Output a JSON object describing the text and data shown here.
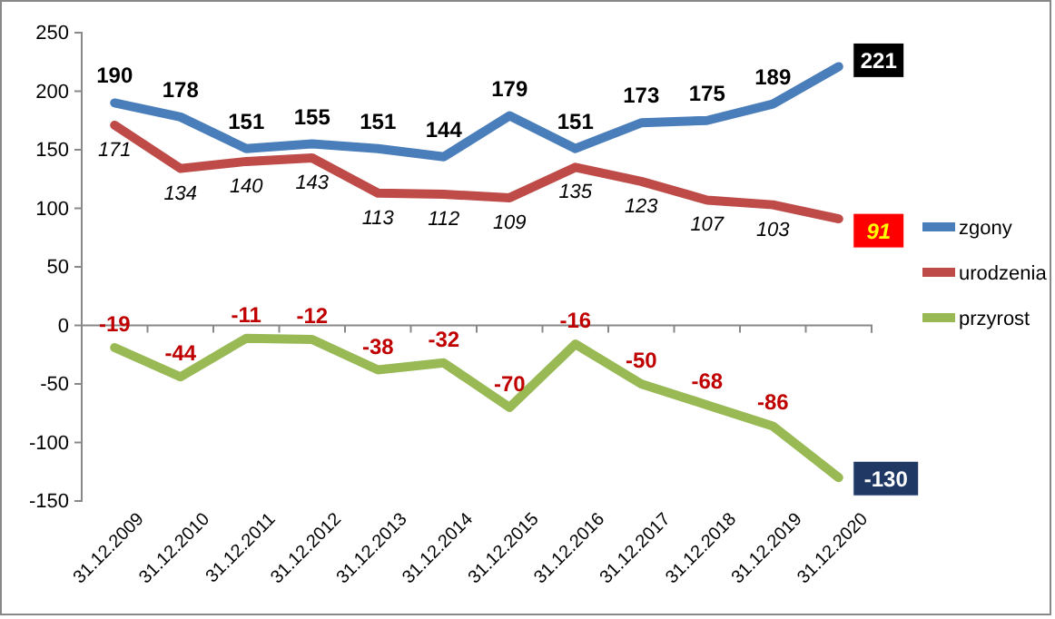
{
  "chart_data": {
    "type": "line",
    "categories": [
      "31.12.2009",
      "31.12.2010",
      "31.12.2011",
      "31.12.2012",
      "31.12.2013",
      "31.12.2014",
      "31.12.2015",
      "31.12.2016",
      "31.12.2017",
      "31.12.2018",
      "31.12.2019",
      "31.12.2020"
    ],
    "series": [
      {
        "name": "zgony",
        "color": "#4a7ebb",
        "values": [
          190,
          178,
          151,
          155,
          151,
          144,
          179,
          151,
          173,
          175,
          189,
          221
        ]
      },
      {
        "name": "urodzenia",
        "color": "#be4b48",
        "values": [
          171,
          134,
          140,
          143,
          113,
          112,
          109,
          135,
          123,
          107,
          103,
          91
        ]
      },
      {
        "name": "przyrost",
        "color": "#98b954",
        "values": [
          -19,
          -44,
          -11,
          -12,
          -38,
          -32,
          -70,
          -16,
          -50,
          -68,
          -86,
          -130
        ]
      }
    ],
    "ylim": [
      -150,
      250
    ],
    "yticks": [
      -150,
      -100,
      -50,
      0,
      50,
      100,
      150,
      200,
      250
    ],
    "grid": false,
    "legend": "right",
    "data_labels": true,
    "marker": "none",
    "line_style": "solid"
  }
}
